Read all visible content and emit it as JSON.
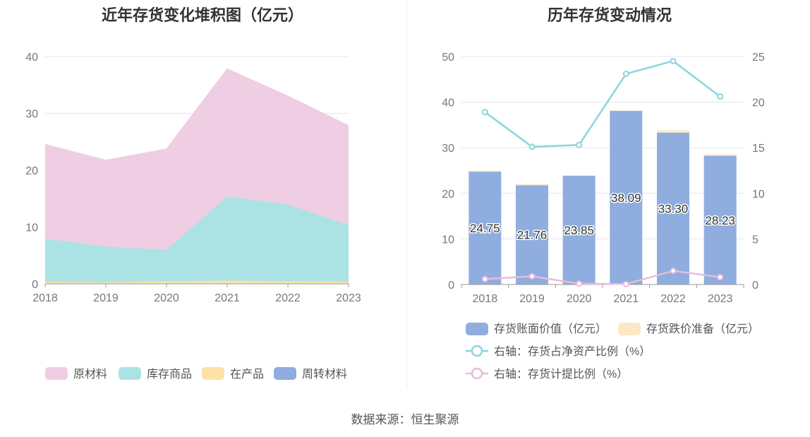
{
  "footer": {
    "source": "数据来源：恒生聚源"
  },
  "colors": {
    "raw_materials": "#efcde3",
    "inventory_goods": "#abe3e4",
    "wip": "#fde2a8",
    "turnover_materials": "#8fadde",
    "book_value": "#8fadde",
    "impairment": "#fde8c6",
    "ratio_net_assets": "#88d6da",
    "provision_ratio": "#e8bcdc",
    "grid": "#e3e6f3",
    "axis": "#999999"
  },
  "chart_data": [
    {
      "type": "area",
      "title": "近年存货变化堆积图（亿元）",
      "stacked": true,
      "categories": [
        "2018",
        "2019",
        "2020",
        "2021",
        "2022",
        "2023"
      ],
      "ylim": [
        0,
        40
      ],
      "yticks": [
        "0",
        "10",
        "20",
        "30",
        "40"
      ],
      "grid": true,
      "legend_position": "bottom",
      "series": [
        {
          "name": "原材料",
          "values": [
            16.6,
            15.2,
            17.8,
            22.5,
            19.1,
            17.5
          ],
          "color_key": "raw_materials"
        },
        {
          "name": "库存商品",
          "values": [
            7.6,
            6.3,
            5.5,
            14.8,
            13.5,
            10.0
          ],
          "color_key": "inventory_goods"
        },
        {
          "name": "在产品",
          "values": [
            0.3,
            0.2,
            0.4,
            0.5,
            0.4,
            0.3
          ],
          "color_key": "wip"
        },
        {
          "name": "周转材料",
          "values": [
            0.05,
            0.05,
            0.05,
            0.05,
            0.05,
            0.05
          ],
          "color_key": "turnover_materials"
        }
      ]
    },
    {
      "type": "bar",
      "title": "历年存货变动情况",
      "stacked": true,
      "categories": [
        "2018",
        "2019",
        "2020",
        "2021",
        "2022",
        "2023"
      ],
      "ylim": [
        0,
        50
      ],
      "yticks": [
        "0",
        "10",
        "20",
        "30",
        "40",
        "50"
      ],
      "y2lim": [
        0,
        25
      ],
      "y2ticks": [
        "0",
        "5",
        "10",
        "15",
        "20",
        "25"
      ],
      "grid": true,
      "legend_position": "bottom",
      "series": [
        {
          "name": "存货账面价值（亿元）",
          "values": [
            24.75,
            21.76,
            23.85,
            38.09,
            33.3,
            28.23
          ],
          "labels": [
            "24.75",
            "21.76",
            "23.85",
            "38.09",
            "33.30",
            "28.23"
          ],
          "color_key": "book_value"
        },
        {
          "name": "存货跌价准备（亿元）",
          "values": [
            0.2,
            0.25,
            0.1,
            0.05,
            0.5,
            0.3
          ],
          "color_key": "impairment"
        }
      ],
      "line_series": [
        {
          "name": "右轴：存货占净资产比例（%）",
          "axis": "right",
          "values": [
            18.9,
            15.1,
            15.3,
            23.1,
            24.5,
            20.6
          ],
          "color_key": "ratio_net_assets"
        },
        {
          "name": "右轴：存货计提比例（%）",
          "axis": "right",
          "values": [
            0.6,
            0.9,
            0.1,
            0.05,
            1.5,
            0.8
          ],
          "color_key": "provision_ratio"
        }
      ]
    }
  ]
}
